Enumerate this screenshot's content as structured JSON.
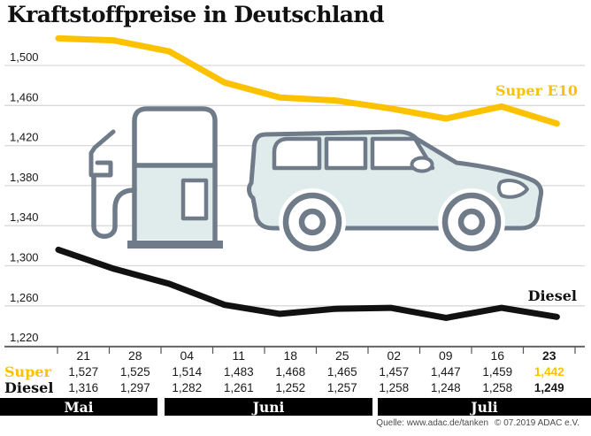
{
  "page": {
    "title": "Kraftstoffpreise in Deutschland",
    "source": "Quelle: www.adac.de/tanken",
    "copyright": "© 07.2019 ADAC e.V."
  },
  "chart_data": {
    "type": "line",
    "title": "Kraftstoffpreise in Deutschland",
    "xlabel": "",
    "ylabel": "",
    "ylim": [
      1220,
      1500
    ],
    "grid": true,
    "legend_position": "inline-right",
    "yticks": [
      "1,500",
      "1,460",
      "1,420",
      "1,380",
      "1,340",
      "1,300",
      "1,260",
      "1,220"
    ],
    "ytick_values": [
      1500,
      1460,
      1420,
      1380,
      1340,
      1300,
      1260,
      1220
    ],
    "categories": [
      "21",
      "28",
      "04",
      "11",
      "18",
      "25",
      "02",
      "09",
      "16",
      "23"
    ],
    "months": [
      {
        "label": "Mai",
        "columns": 2
      },
      {
        "label": "Juni",
        "columns": 4
      },
      {
        "label": "Juli",
        "columns": 4
      }
    ],
    "series": [
      {
        "name": "Super",
        "label": "Super E10",
        "color": "#fcc200",
        "values": [
          1527,
          1525,
          1514,
          1483,
          1468,
          1465,
          1457,
          1447,
          1459,
          1442
        ],
        "display": [
          "1,527",
          "1,525",
          "1,514",
          "1,483",
          "1,468",
          "1,465",
          "1,457",
          "1,447",
          "1,459",
          "1,442"
        ]
      },
      {
        "name": "Diesel",
        "label": "Diesel",
        "color": "#111111",
        "values": [
          1316,
          1297,
          1282,
          1261,
          1252,
          1257,
          1258,
          1248,
          1258,
          1249
        ],
        "display": [
          "1,316",
          "1,297",
          "1,282",
          "1,261",
          "1,252",
          "1,257",
          "1,258",
          "1,248",
          "1,258",
          "1,249"
        ]
      }
    ]
  }
}
